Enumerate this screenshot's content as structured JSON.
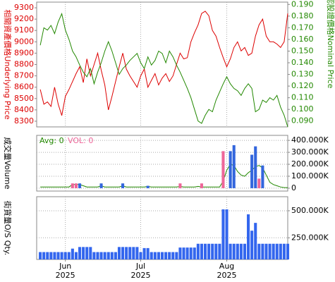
{
  "chart_data": [
    {
      "type": "line",
      "ylabel": "相關資產價格Underlying Price",
      "y2label": "認股證價格Nominal Price",
      "ylim": [
        8250,
        9350
      ],
      "yticks": [
        8300,
        8400,
        8500,
        8600,
        8700,
        8800,
        8900,
        9000,
        9100,
        9200,
        9300
      ],
      "y2lim": [
        0.085,
        0.192
      ],
      "y2ticks": [
        {
          "value": 0.09,
          "label": "0.090"
        },
        {
          "value": 0.1,
          "label": "0.100"
        },
        {
          "value": 0.11,
          "label": "0.110"
        },
        {
          "value": 0.12,
          "label": "0.120"
        },
        {
          "value": 0.13,
          "label": "0.130"
        },
        {
          "value": 0.14,
          "label": "0.140"
        },
        {
          "value": 0.15,
          "label": "0.150"
        },
        {
          "value": 0.16,
          "label": "0.160"
        },
        {
          "value": 0.17,
          "label": "0.170"
        },
        {
          "value": 0.18,
          "label": "0.180"
        },
        {
          "value": 0.19,
          "label": "0.190"
        }
      ],
      "series": [
        {
          "color": "#dd0000",
          "values": [
            8580,
            8450,
            8470,
            8430,
            8600,
            8450,
            8350,
            8520,
            8580,
            8650,
            8720,
            8780,
            8640,
            8850,
            8700,
            8800,
            8900,
            8750,
            8620,
            8400,
            8520,
            8650,
            8780,
            8900,
            8760,
            8700,
            8650,
            8600,
            8700,
            8760,
            8600,
            8660,
            8720,
            8620,
            8680,
            8720,
            8650,
            8700,
            8800,
            8900,
            8850,
            8860,
            9000,
            9080,
            9150,
            9250,
            9270,
            9230,
            9100,
            9050,
            8950,
            8860,
            8780,
            8850,
            8950,
            9000,
            8920,
            8950,
            8880,
            8900,
            9050,
            9150,
            9200,
            9050,
            9000,
            9000,
            8980,
            8950,
            9000,
            9250
          ]
        },
        {
          "color": "#228800",
          "axis": "y2",
          "values": [
            0.155,
            0.17,
            0.168,
            0.172,
            0.165,
            0.175,
            0.182,
            0.168,
            0.16,
            0.15,
            0.145,
            0.138,
            0.132,
            0.128,
            0.135,
            0.122,
            0.132,
            0.14,
            0.15,
            0.158,
            0.15,
            0.14,
            0.13,
            0.135,
            0.138,
            0.142,
            0.145,
            0.148,
            0.14,
            0.135,
            0.145,
            0.138,
            0.142,
            0.15,
            0.148,
            0.14,
            0.15,
            0.145,
            0.138,
            0.132,
            0.125,
            0.118,
            0.11,
            0.1,
            0.09,
            0.088,
            0.095,
            0.1,
            0.098,
            0.108,
            0.115,
            0.122,
            0.128,
            0.122,
            0.118,
            0.116,
            0.112,
            0.118,
            0.122,
            0.118,
            0.098,
            0.1,
            0.108,
            0.106,
            0.11,
            0.108,
            0.112,
            0.102,
            0.095,
            0.085
          ]
        }
      ]
    },
    {
      "type": "bar",
      "ylabel": "成交量Volume",
      "y2lim": [
        -24000,
        442000
      ],
      "y2ticks": [
        0,
        {
          "value": 100000,
          "label": "100.000K"
        },
        {
          "value": 200000,
          "label": "200.000K"
        },
        {
          "value": 300000,
          "label": "300.000K"
        },
        {
          "value": 400000,
          "label": "400.000K"
        }
      ],
      "grid": true,
      "series": [
        {
          "name": "Avg: 0",
          "type": "line",
          "color": "#228800",
          "axis": "y2",
          "values": [
            10000,
            10000,
            10000,
            10000,
            10000,
            10000,
            10000,
            10000,
            10000,
            30000,
            30000,
            30000,
            20000,
            10000,
            10000,
            10000,
            10000,
            20000,
            10000,
            10000,
            10000,
            10000,
            10000,
            20000,
            10000,
            10000,
            10000,
            10000,
            10000,
            10000,
            15000,
            10000,
            10000,
            10000,
            10000,
            10000,
            10000,
            10000,
            10000,
            15000,
            10000,
            10000,
            10000,
            10000,
            15000,
            10000,
            10000,
            10000,
            10000,
            10000,
            10000,
            60000,
            150000,
            200000,
            190000,
            140000,
            110000,
            100000,
            130000,
            150000,
            180000,
            190000,
            170000,
            110000,
            50000,
            30000,
            20000,
            10000,
            5000,
            5000
          ]
        },
        {
          "name": "VOL: 0",
          "color": "#ee6699",
          "axis": "y2",
          "values": [
            null,
            null,
            null,
            null,
            null,
            null,
            null,
            null,
            null,
            40000,
            40000,
            null,
            null,
            null,
            null,
            null,
            null,
            null,
            null,
            null,
            null,
            null,
            null,
            null,
            null,
            null,
            null,
            null,
            null,
            null,
            null,
            null,
            null,
            null,
            null,
            null,
            null,
            null,
            null,
            40000,
            null,
            null,
            null,
            null,
            null,
            40000,
            null,
            null,
            null,
            null,
            null,
            310000,
            null,
            null,
            null,
            null,
            null,
            null,
            null,
            null,
            null,
            80000,
            null,
            null,
            null,
            null,
            null,
            null,
            null,
            null
          ]
        },
        {
          "color": "#3366dd",
          "axis": "y2",
          "values": [
            null,
            null,
            null,
            null,
            null,
            null,
            null,
            null,
            null,
            null,
            null,
            40000,
            null,
            null,
            null,
            null,
            null,
            40000,
            null,
            null,
            null,
            null,
            null,
            40000,
            null,
            null,
            null,
            null,
            null,
            null,
            20000,
            null,
            null,
            null,
            null,
            null,
            null,
            null,
            null,
            null,
            null,
            null,
            null,
            null,
            null,
            null,
            null,
            null,
            null,
            null,
            null,
            null,
            null,
            310000,
            360000,
            null,
            null,
            null,
            null,
            280000,
            350000,
            null,
            190000,
            null,
            null,
            null,
            null,
            null,
            null,
            null
          ]
        }
      ]
    },
    {
      "type": "bar",
      "ylabel": "街貨量O/S Qty.",
      "y2lim": [
        50000,
        630000
      ],
      "y2ticks": [
        {
          "value": 250000,
          "label": "250.000K"
        },
        {
          "value": 500000,
          "label": "500.000K"
        }
      ],
      "grid": true,
      "xlim": [
        -1,
        69
      ],
      "xticks": [
        {
          "value": 7,
          "label": "Jun"
        },
        {
          "value": 28,
          "label": "Jul"
        },
        {
          "value": 52,
          "label": "Aug"
        }
      ],
      "xtick_years": [
        "2025",
        "2025",
        "2025"
      ],
      "series": [
        {
          "color": "#3366ee",
          "axis": "y2",
          "values": [
            118000,
            118000,
            118000,
            118000,
            118000,
            118000,
            118000,
            118000,
            118000,
            150000,
            118000,
            165000,
            165000,
            165000,
            165000,
            118000,
            118000,
            118000,
            118000,
            118000,
            118000,
            118000,
            165000,
            165000,
            165000,
            165000,
            165000,
            165000,
            118000,
            155000,
            155000,
            118000,
            118000,
            118000,
            118000,
            118000,
            118000,
            118000,
            118000,
            160000,
            160000,
            160000,
            160000,
            160000,
            195000,
            195000,
            195000,
            195000,
            195000,
            195000,
            195000,
            513000,
            513000,
            195000,
            195000,
            195000,
            195000,
            195000,
            467000,
            316000,
            388000,
            195000,
            195000,
            195000,
            195000,
            195000,
            195000,
            195000,
            195000,
            195000
          ]
        }
      ]
    }
  ]
}
